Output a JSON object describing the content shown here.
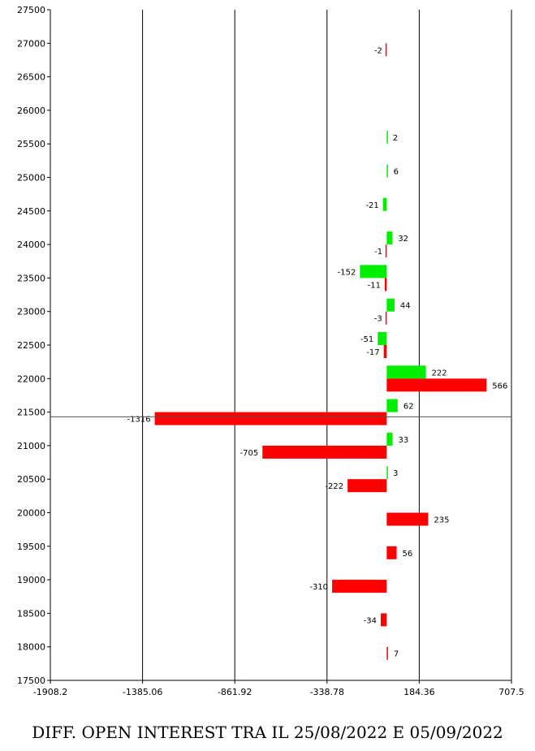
{
  "chart_data": {
    "type": "bar",
    "orientation": "horizontal",
    "title": "DIFF. OPEN INTEREST TRA IL 25/08/2022 E 05/09/2022",
    "xlim": [
      -1908.2,
      707.5
    ],
    "xticks": [
      -1908.2,
      -1385.06,
      -861.92,
      -338.78,
      184.36,
      707.5
    ],
    "xtick_labels": [
      "-1908.2",
      "-1385.06",
      "-861.92",
      "-338.78",
      "184.36",
      "707.5"
    ],
    "ylim": [
      17500,
      27500
    ],
    "yticks": [
      17500,
      18000,
      18500,
      19000,
      19500,
      20000,
      20500,
      21000,
      21500,
      22000,
      22500,
      23000,
      23500,
      24000,
      24500,
      25000,
      25500,
      26000,
      26500,
      27000,
      27500
    ],
    "vertical_gridlines": true,
    "reference_line_y": 21430,
    "series": [
      {
        "color": "#00ee00",
        "points": [
          {
            "strike": 25500,
            "value": 2
          },
          {
            "strike": 25000,
            "value": 6
          },
          {
            "strike": 24500,
            "value": -21
          },
          {
            "strike": 24000,
            "value": 32
          },
          {
            "strike": 23500,
            "value": -152
          },
          {
            "strike": 23000,
            "value": 44
          },
          {
            "strike": 22500,
            "value": -51
          },
          {
            "strike": 22000,
            "value": 222
          },
          {
            "strike": 21500,
            "value": 62
          },
          {
            "strike": 21000,
            "value": 33
          },
          {
            "strike": 20500,
            "value": 3
          }
        ]
      },
      {
        "color": "#ff0000",
        "points": [
          {
            "strike": 27000,
            "value": -2
          },
          {
            "strike": 24000,
            "value": -1
          },
          {
            "strike": 23500,
            "value": -11
          },
          {
            "strike": 23000,
            "value": -3
          },
          {
            "strike": 22500,
            "value": -17
          },
          {
            "strike": 22000,
            "value": 566
          },
          {
            "strike": 21500,
            "value": -1316
          },
          {
            "strike": 21000,
            "value": -705
          },
          {
            "strike": 20500,
            "value": -222
          },
          {
            "strike": 20000,
            "value": 235
          },
          {
            "strike": 19500,
            "value": 56
          },
          {
            "strike": 19000,
            "value": -310
          },
          {
            "strike": 18500,
            "value": -34
          },
          {
            "strike": 18000,
            "value": 7
          }
        ]
      }
    ]
  }
}
